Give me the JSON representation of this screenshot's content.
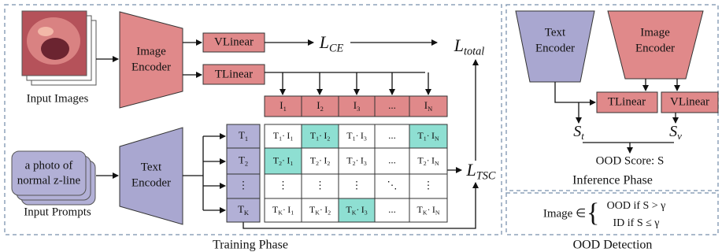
{
  "training": {
    "input_images_label": "Input Images",
    "image_encoder": [
      "Image",
      "Encoder"
    ],
    "vlinear": "VLinear",
    "tlinear": "TLinear",
    "loss_ce": {
      "base": "L",
      "sub": "CE"
    },
    "loss_total": {
      "base": "L",
      "sub": "total"
    },
    "loss_tsc": {
      "base": "L",
      "sub": "TSC"
    },
    "prompt": [
      "a photo of",
      "normal z-line"
    ],
    "input_prompts_label": "Input Prompts",
    "text_encoder": [
      "Text",
      "Encoder"
    ],
    "matrix": {
      "separator": "·",
      "columns": [
        {
          "base": "I",
          "sub": "1"
        },
        {
          "base": "I",
          "sub": "2"
        },
        {
          "base": "I",
          "sub": "3"
        },
        "...",
        {
          "base": "I",
          "sub": "N"
        }
      ],
      "rows": [
        {
          "base": "T",
          "sub": "1"
        },
        {
          "base": "T",
          "sub": "2"
        },
        "⋮",
        {
          "base": "T",
          "sub": "K"
        }
      ],
      "cells": [
        [
          {
            "a": {
              "base": "T",
              "sub": "1"
            },
            "b": {
              "base": "I",
              "sub": "1"
            }
          },
          {
            "a": {
              "base": "T",
              "sub": "1"
            },
            "b": {
              "base": "I",
              "sub": "2"
            }
          },
          {
            "a": {
              "base": "T",
              "sub": "1"
            },
            "b": {
              "base": "I",
              "sub": "3"
            }
          },
          "...",
          {
            "a": {
              "base": "T",
              "sub": "1"
            },
            "b": {
              "base": "I",
              "sub": "N"
            }
          }
        ],
        [
          {
            "a": {
              "base": "T",
              "sub": "2"
            },
            "b": {
              "base": "I",
              "sub": "1"
            }
          },
          {
            "a": {
              "base": "T",
              "sub": "2"
            },
            "b": {
              "base": "I",
              "sub": "2"
            }
          },
          {
            "a": {
              "base": "T",
              "sub": "2"
            },
            "b": {
              "base": "I",
              "sub": "3"
            }
          },
          "...",
          {
            "a": {
              "base": "T",
              "sub": "2"
            },
            "b": {
              "base": "I",
              "sub": "N"
            }
          }
        ],
        [
          "⋮",
          "⋮",
          "⋮",
          "⋱",
          "⋮"
        ],
        [
          {
            "a": {
              "base": "T",
              "sub": "K"
            },
            "b": {
              "base": "I",
              "sub": "1"
            }
          },
          {
            "a": {
              "base": "T",
              "sub": "K"
            },
            "b": {
              "base": "I",
              "sub": "2"
            }
          },
          {
            "a": {
              "base": "T",
              "sub": "K"
            },
            "b": {
              "base": "I",
              "sub": "3"
            }
          },
          "...",
          {
            "a": {
              "base": "T",
              "sub": "K"
            },
            "b": {
              "base": "I",
              "sub": "N"
            }
          }
        ]
      ],
      "highlight": [
        [
          0,
          1
        ],
        [
          0,
          4
        ],
        [
          1,
          0
        ],
        [
          3,
          2
        ]
      ]
    },
    "phase_label": "Training Phase"
  },
  "inference": {
    "text_encoder": [
      "Text",
      "Encoder"
    ],
    "image_encoder": [
      "Image",
      "Encoder"
    ],
    "tlinear": "TLinear",
    "vlinear": "VLinear",
    "s_t": {
      "base": "S",
      "sub": "t"
    },
    "s_v": {
      "base": "S",
      "sub": "v"
    },
    "ood_score": "OOD Score: S",
    "phase_label": "Inference Phase"
  },
  "ood_detection": {
    "lhs": "Image ∈",
    "cases": [
      "OOD if S > γ",
      "ID if S ≤ γ"
    ],
    "label": "OOD Detection"
  }
}
